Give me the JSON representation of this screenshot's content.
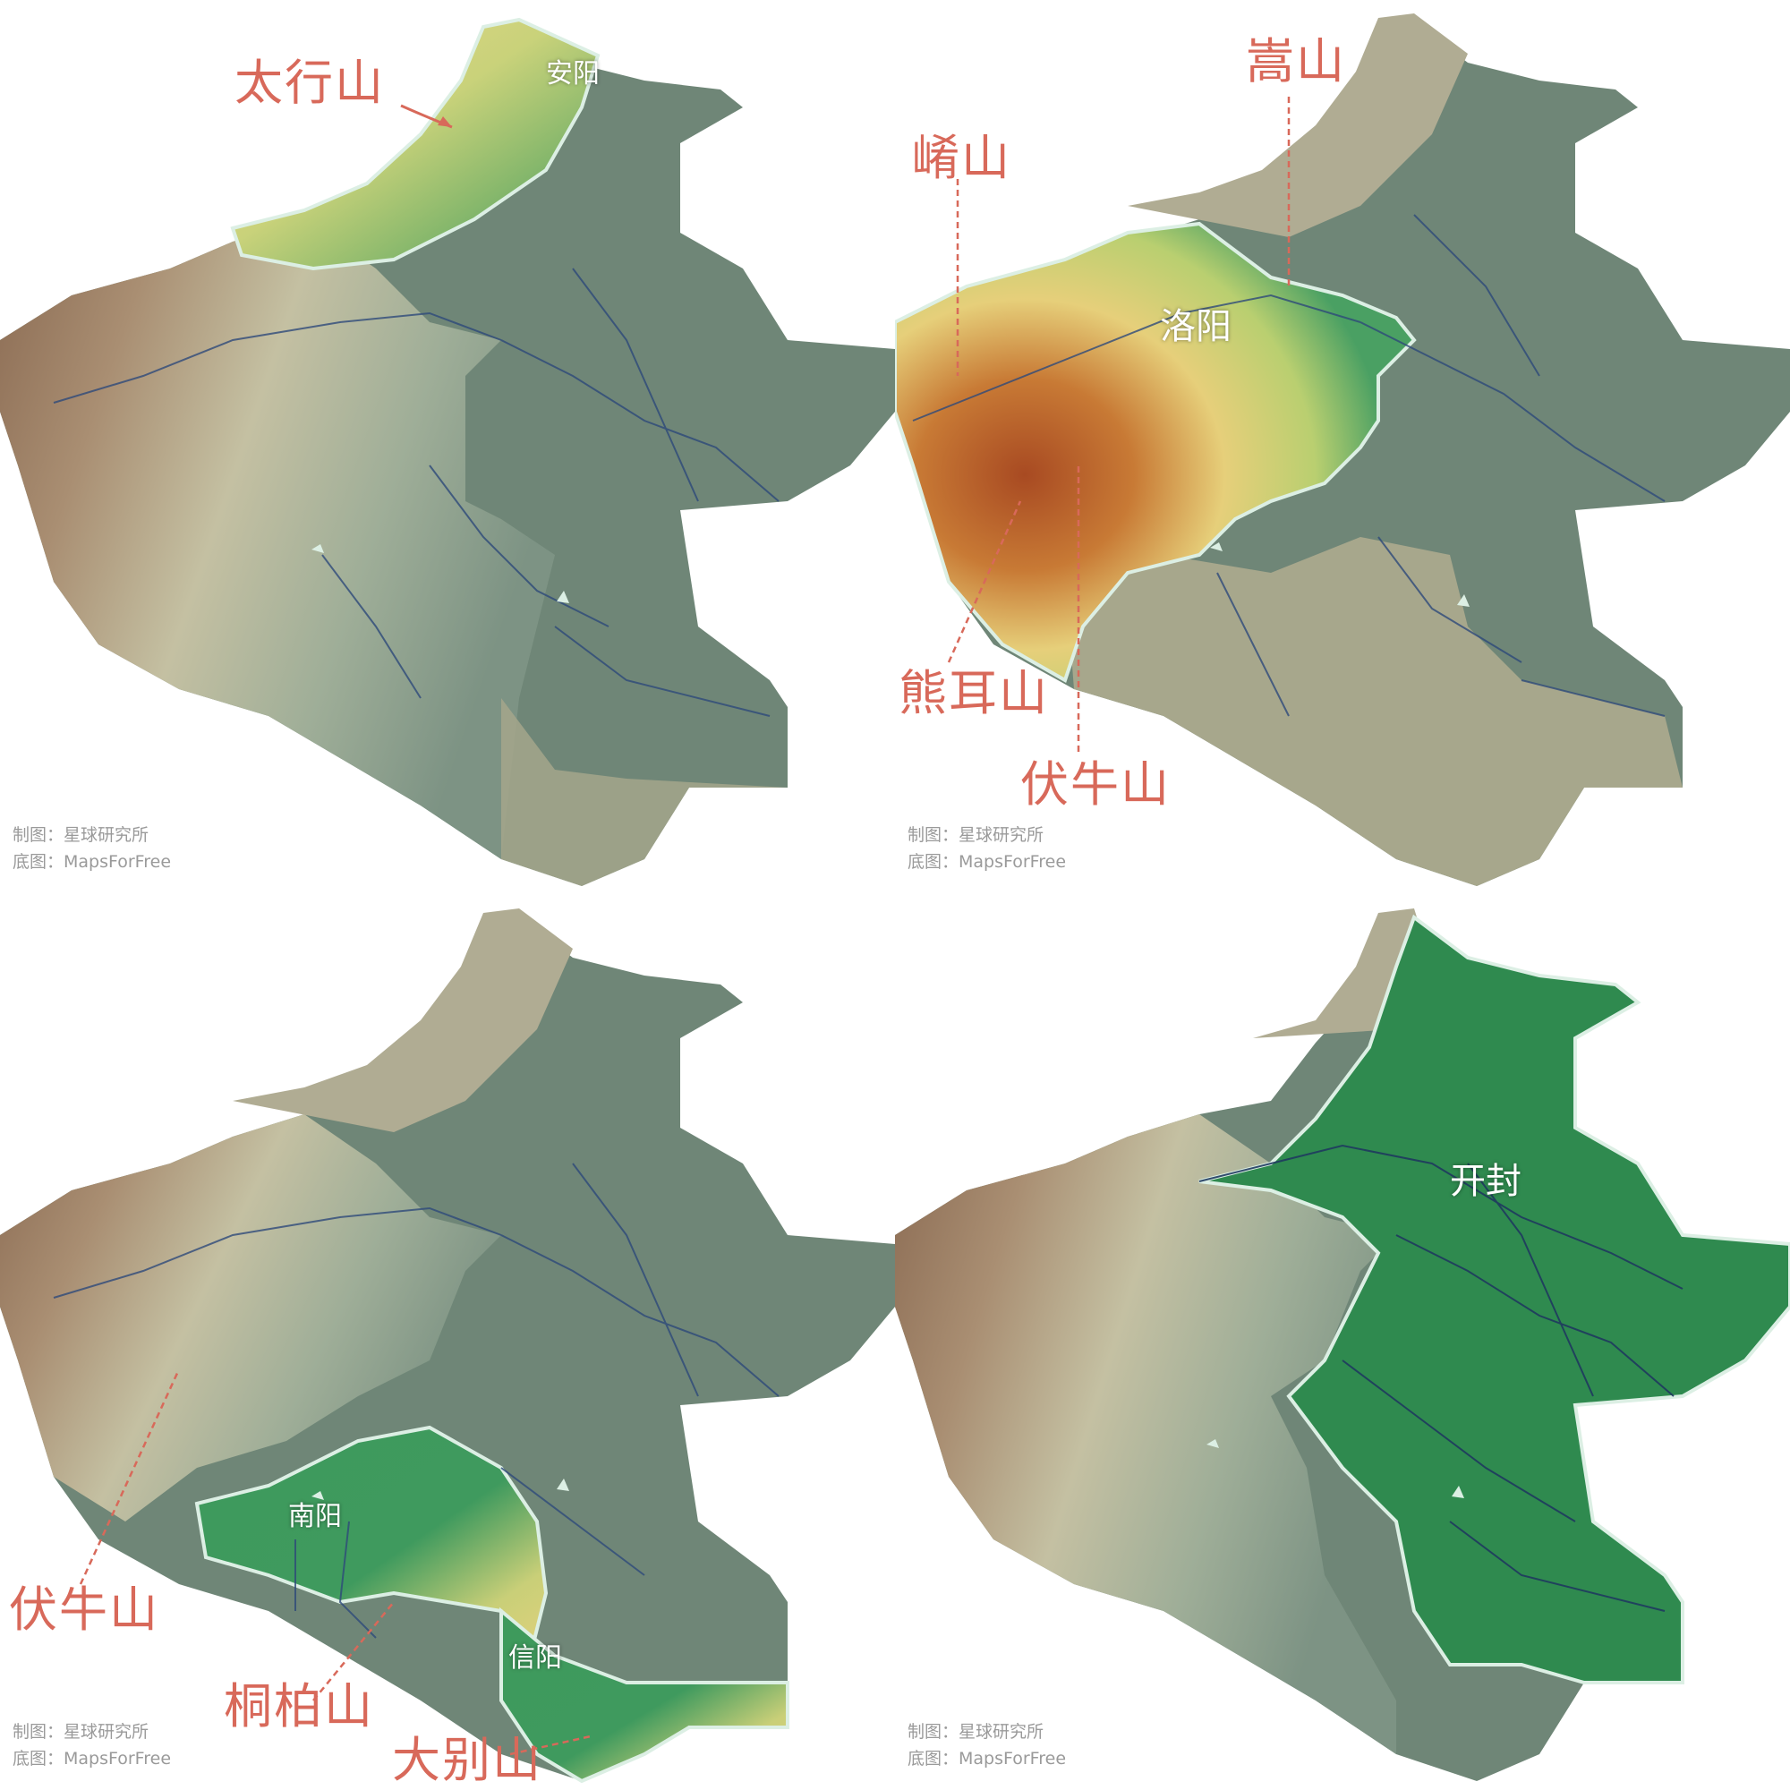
{
  "colors": {
    "plain": "#6f8677",
    "hills": "#b7b8a0",
    "mountains": "#8c6a55",
    "highlight_green": "#3f9a5e",
    "highlight_yellow": "#e3d27c",
    "highlight_brown": "#b2522a",
    "river": "#2e4a7a",
    "border": "#dcefe4",
    "label_red": "#d8695a",
    "credit_gray": "#9a9a9a"
  },
  "credit": {
    "line1": "制图：星球研究所",
    "line2": "底图：MapsForFree"
  },
  "panels": [
    {
      "id": "taihang",
      "mountains": [
        "太行山"
      ],
      "cities": [
        "安阳"
      ]
    },
    {
      "id": "luoyang",
      "mountains": [
        "嵩山",
        "崤山",
        "熊耳山",
        "伏牛山"
      ],
      "cities": [
        "洛阳"
      ]
    },
    {
      "id": "nanyang",
      "mountains": [
        "伏牛山",
        "桐柏山",
        "大别山"
      ],
      "cities": [
        "南阳",
        "信阳"
      ]
    },
    {
      "id": "kaifeng",
      "mountains": [],
      "cities": [
        "开封"
      ]
    }
  ]
}
